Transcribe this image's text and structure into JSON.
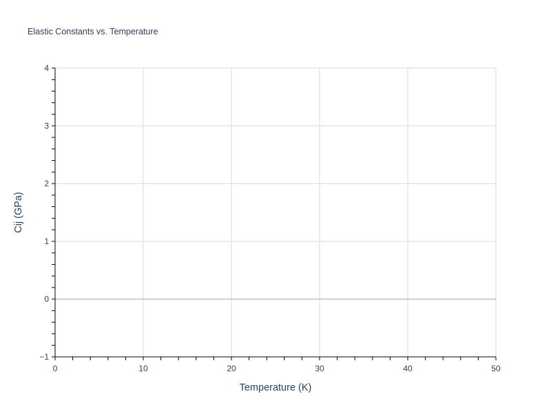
{
  "chart_data": {
    "type": "scatter",
    "title": "Elastic Constants vs. Temperature",
    "xlabel": "Temperature (K)",
    "ylabel": "Cij (GPa)",
    "xlim": [
      0,
      50
    ],
    "ylim": [
      -1,
      4
    ],
    "xticks": [
      0,
      10,
      20,
      30,
      40,
      50
    ],
    "yticks": [
      -1,
      0,
      1,
      2,
      3,
      4
    ],
    "xtick_labels": [
      "0",
      "10",
      "20",
      "30",
      "40",
      "50"
    ],
    "ytick_labels": [
      "−1",
      "0",
      "1",
      "2",
      "3",
      "4"
    ],
    "x_minor_step": 2,
    "y_minor_step": 0.2,
    "grid": true,
    "series": [],
    "colors": {
      "text": "#2a3f5f",
      "grid": "#e5e5e5",
      "zeroline": "#d0d0d0",
      "axis": "#000000"
    }
  }
}
